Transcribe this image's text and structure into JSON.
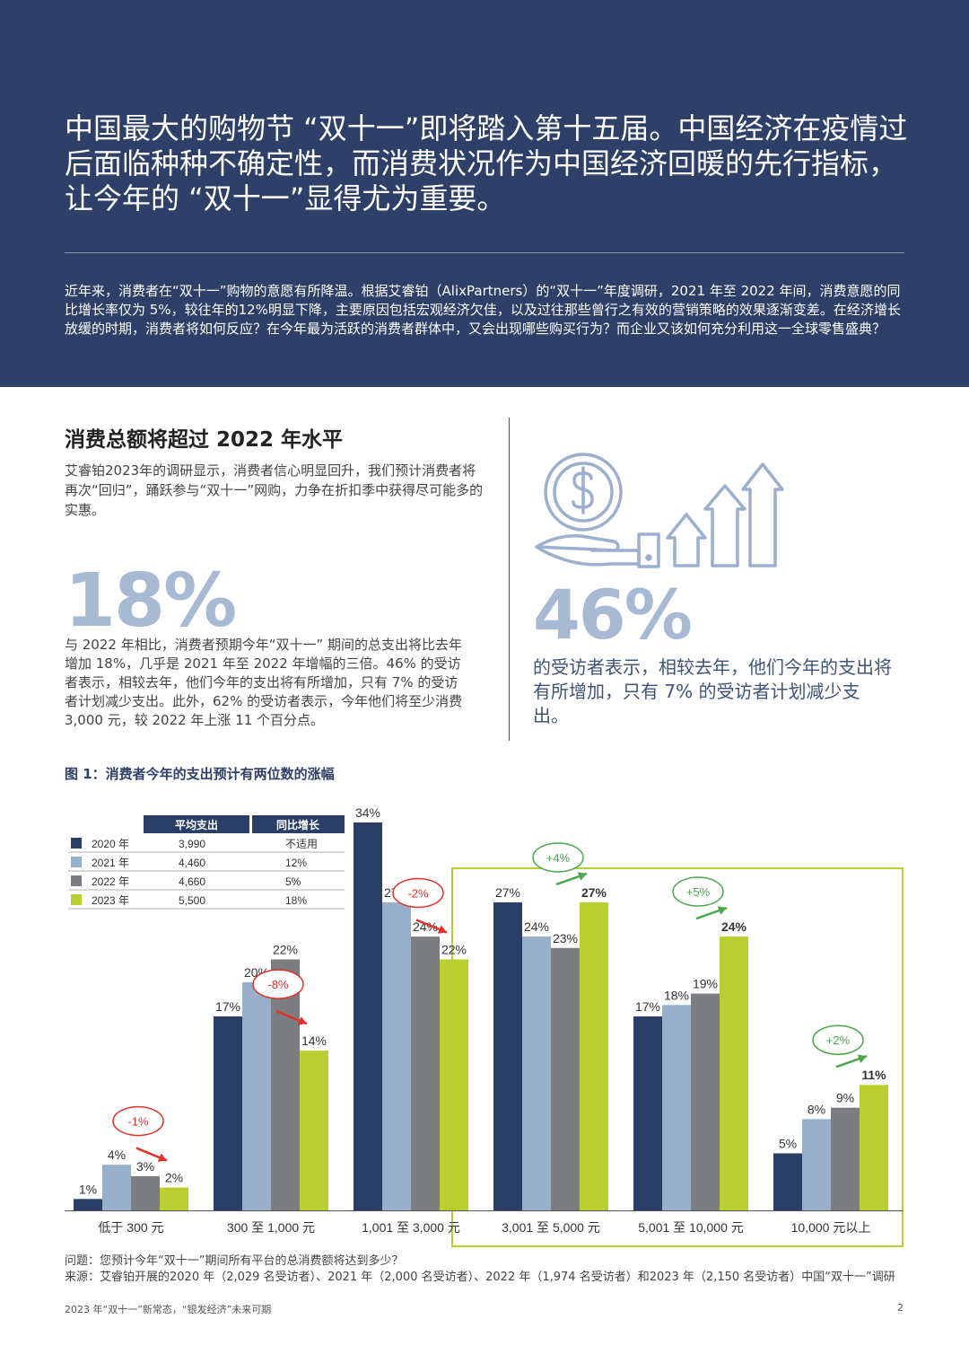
{
  "hero": {
    "title": "中国最大的购物节 “双十一”即将踏入第十五届。中国经济在疫情过后面临种种不确定性，而消费状况作为中国经济回暖的先行指标，让今年的 “双十一”显得尤为重要。",
    "intro": "近年来，消费者在“双十一”购物的意愿有所降温。根据艾睿铂（AlixPartners）的“双十一”年度调研，2021 年至 2022 年间，消费意愿的同比增长率仅为 5%，较往年的12%明显下降，主要原因包括宏观经济欠佳，以及过往那些曾行之有效的营销策略的效果逐渐变差。在经济增长放缓的时期，消费者将如何反应？在今年最为活跃的消费者群体中，又会出现哪些购买行为？而企业又该如何充分利用这一全球零售盛典？"
  },
  "section": {
    "heading": "消费总额将超过 2022 年水平",
    "intro": "艾睿铂2023年的调研显示，消费者信心明显回升，我们预计消费者将再次“回归”，踊跃参与“双十一”网购，力争在折扣季中获得尽可能多的实惠。"
  },
  "stat_left": {
    "value": "18%",
    "text": "与 2022 年相比，消费者预期今年“双十一” 期间的总支出将比去年增加 18%，几乎是 2021 年至 2022 年增幅的三倍。46% 的受访者表示，相较去年，他们今年的支出将有所增加，只有 7% 的受访者计划减少支出。此外，62% 的受访者表示，今年他们将至少消费 3,000 元，较 2022 年上涨 11 个百分点。"
  },
  "stat_right": {
    "value": "46%",
    "text": "的受访者表示，相较去年，他们今年的支出将有所增加，只有 7% 的受访者计划减少支出。",
    "icon": "money-hand-growth-icon"
  },
  "figure": {
    "title": "图 1：消费者今年的支出预计有两位数的涨幅"
  },
  "chart_data": {
    "type": "bar",
    "categories": [
      "低于 300 元",
      "300 至 1,000 元",
      "1,001 至 3,000 元",
      "3,001 至 5,000 元",
      "5,001 至 10,000 元",
      "10,000 元以上"
    ],
    "series": [
      {
        "name": "2020 年",
        "color": "#2b3f66",
        "values": [
          1,
          17,
          34,
          27,
          17,
          5
        ]
      },
      {
        "name": "2021 年",
        "color": "#98afcc",
        "values": [
          4,
          20,
          27,
          24,
          18,
          8
        ]
      },
      {
        "name": "2022 年",
        "color": "#7b7d81",
        "values": [
          3,
          22,
          24,
          23,
          19,
          9
        ]
      },
      {
        "name": "2023 年",
        "color": "#b8cf2f",
        "values": [
          2,
          14,
          22,
          27,
          24,
          11
        ]
      }
    ],
    "value_suffix": "%",
    "changes": [
      "-1%",
      "-8%",
      "-2%",
      "+4%",
      "+5%",
      "+2%"
    ],
    "highlight_categories": [
      3,
      4,
      5
    ],
    "highlight_color": "#b8cf2f",
    "table": {
      "headers": [
        "平均支出",
        "同比增长"
      ],
      "rows": [
        {
          "year": "2020 年",
          "avg": "3,990",
          "yoy": "不适用"
        },
        {
          "year": "2021 年",
          "avg": "4,460",
          "yoy": "12%"
        },
        {
          "year": "2022 年",
          "avg": "4,660",
          "yoy": "5%"
        },
        {
          "year": "2023 年",
          "avg": "5,500",
          "yoy": "18%"
        }
      ]
    },
    "ylim": [
      0,
      34
    ]
  },
  "footnote": {
    "question": "问题：您预计今年“双十一”期间所有平台的总消费额将达到多少？",
    "source": "来源：艾睿铂开展的2020 年（2,029 名受访者）、2021 年（2,000 名受访者）、2022 年（1,974 名受访者）和2023 年（2,150 名受访者）中国“双十一”调研"
  },
  "footer": {
    "left": "2023 年“双十一”新常态，“银发经济”未来可期",
    "page": "2"
  }
}
